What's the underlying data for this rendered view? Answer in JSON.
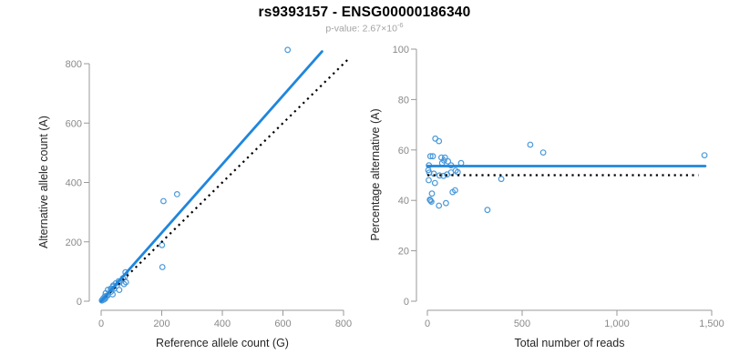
{
  "header": {
    "title": "rs9393157 - ENSG00000186340",
    "pvalue_text": "p-value: 2.67×10",
    "pvalue_exponent": "-6"
  },
  "colors": {
    "line_blue": "#1f86dd",
    "point_blue": "#4b99da",
    "dotted_black": "#000000",
    "axis_gray": "#999999",
    "tick_text": "#8a8a8a",
    "label_dark": "#262626",
    "title_black": "#000000",
    "subtitle_gray": "#a3a3a3"
  },
  "chart_data": [
    {
      "type": "scatter",
      "name": "allele-counts",
      "xlabel": "Reference allele count (G)",
      "ylabel": "Alternative allele count (A)",
      "xlim": [
        0,
        800
      ],
      "ylim": [
        0,
        800
      ],
      "grid": false,
      "legend": "none",
      "xticks": [
        0,
        200,
        400,
        600,
        800
      ],
      "xtick_labels": [
        "0",
        "200",
        "400",
        "600",
        "800"
      ],
      "yticks": [
        0,
        200,
        400,
        600,
        800
      ],
      "ytick_labels": [
        "0",
        "200",
        "400",
        "600",
        "800"
      ],
      "points": [
        [
          2.4,
          2.6
        ],
        [
          3.6,
          3.4
        ],
        [
          3.7,
          4.3
        ],
        [
          4.9,
          5.1
        ],
        [
          7.8,
          5.2
        ],
        [
          6.8,
          9.2
        ],
        [
          9.6,
          6.4
        ],
        [
          12.7,
          8.3
        ],
        [
          13.8,
          10.2
        ],
        [
          12.3,
          16.7
        ],
        [
          16.8,
          17.2
        ],
        [
          21.2,
          18.8
        ],
        [
          14.9,
          27.1
        ],
        [
          22.3,
          38.7
        ],
        [
          37.9,
          23.1
        ],
        [
          32.1,
          31.9
        ],
        [
          31.8,
          42.2
        ],
        [
          35.3,
          42.7
        ],
        [
          42.8,
          42.2
        ],
        [
          38.9,
          49.1
        ],
        [
          40.0,
          53.0
        ],
        [
          59.9,
          38.1
        ],
        [
          51.7,
          52.3
        ],
        [
          48.5,
          60.5
        ],
        [
          57.6,
          67.4
        ],
        [
          61.1,
          63.9
        ],
        [
          75.4,
          57.6
        ],
        [
          81.8,
          64.2
        ],
        [
          71.8,
          77.2
        ],
        [
          78.1,
          81.9
        ],
        [
          80.4,
          97.6
        ],
        [
          202.2,
          114.8
        ],
        [
          200.9,
          189.2
        ],
        [
          205.8,
          337.2
        ],
        [
          250.5,
          360.5
        ],
        [
          615.5,
          846.5
        ]
      ],
      "lines": [
        {
          "name": "identity-line",
          "style": "dotted",
          "color": "#000000",
          "x1": 0,
          "y1": 0,
          "x2": 820,
          "y2": 820
        },
        {
          "name": "fit-line",
          "style": "solid",
          "color": "#1f86dd",
          "x1": 0,
          "y1": 0,
          "x2": 729,
          "y2": 841
        }
      ]
    },
    {
      "type": "scatter",
      "name": "percentage-vs-reads",
      "xlabel": "Total number of reads",
      "ylabel": "Percentage alternative (A)",
      "xlim": [
        0,
        1500
      ],
      "ylim": [
        0,
        100
      ],
      "grid": false,
      "legend": "none",
      "xticks": [
        0,
        500,
        1000,
        1500
      ],
      "xtick_labels": [
        "0",
        "500",
        "1,000",
        "1,500"
      ],
      "yticks": [
        0,
        20,
        40,
        60,
        80,
        100
      ],
      "ytick_labels": [
        "0",
        "20",
        "40",
        "60",
        "80",
        "100"
      ],
      "points": [
        [
          5,
          52.0
        ],
        [
          7,
          48.0
        ],
        [
          8,
          53.9
        ],
        [
          10,
          51.0
        ],
        [
          13,
          40.3
        ],
        [
          16,
          57.5
        ],
        [
          16,
          40.0
        ],
        [
          21,
          39.5
        ],
        [
          24,
          42.7
        ],
        [
          29,
          57.5
        ],
        [
          34,
          50.6
        ],
        [
          40,
          46.9
        ],
        [
          42,
          64.5
        ],
        [
          61,
          63.5
        ],
        [
          61,
          37.9
        ],
        [
          64,
          49.9
        ],
        [
          74,
          57.0
        ],
        [
          78,
          54.8
        ],
        [
          85,
          49.7
        ],
        [
          88,
          55.8
        ],
        [
          93,
          57.0
        ],
        [
          98,
          38.9
        ],
        [
          104,
          50.3
        ],
        [
          109,
          55.5
        ],
        [
          125,
          53.9
        ],
        [
          125,
          51.1
        ],
        [
          133,
          43.3
        ],
        [
          146,
          44.0
        ],
        [
          149,
          51.8
        ],
        [
          160,
          51.2
        ],
        [
          178,
          54.8
        ],
        [
          317,
          36.2
        ],
        [
          390,
          48.5
        ],
        [
          543,
          62.1
        ],
        [
          611,
          59.0
        ],
        [
          1462,
          57.9
        ]
      ],
      "lines": [
        {
          "name": "null-line",
          "style": "dotted",
          "color": "#000000",
          "x1": 0,
          "y1": 50,
          "x2": 1430,
          "y2": 50
        },
        {
          "name": "fit-line",
          "style": "solid",
          "color": "#1f86dd",
          "x1": 0,
          "y1": 53.6,
          "x2": 1466,
          "y2": 53.6
        }
      ]
    }
  ]
}
